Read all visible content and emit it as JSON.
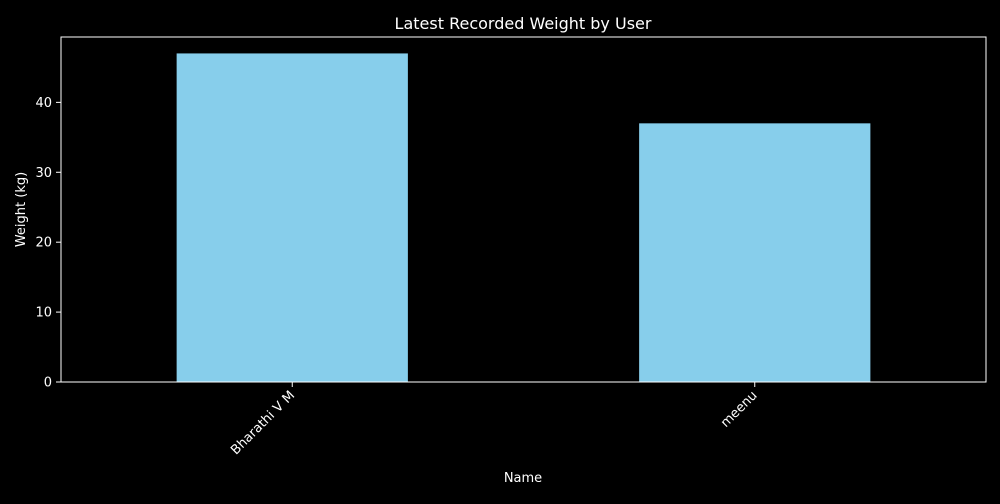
{
  "chart_data": {
    "type": "bar",
    "title": "Latest Recorded Weight by User",
    "xlabel": "Name",
    "ylabel": "Weight (kg)",
    "categories": [
      "Bharathi V M",
      "meenu"
    ],
    "values": [
      47,
      37
    ],
    "ylim": [
      0,
      49.35
    ],
    "yticks": [
      0,
      10,
      20,
      30,
      40
    ],
    "xtick_rotation": 45,
    "grid": false,
    "legend": "none",
    "colors": {
      "background": "#000000",
      "bar": "#87ceeb",
      "axes": "#ffffff",
      "text": "#ffffff"
    }
  }
}
